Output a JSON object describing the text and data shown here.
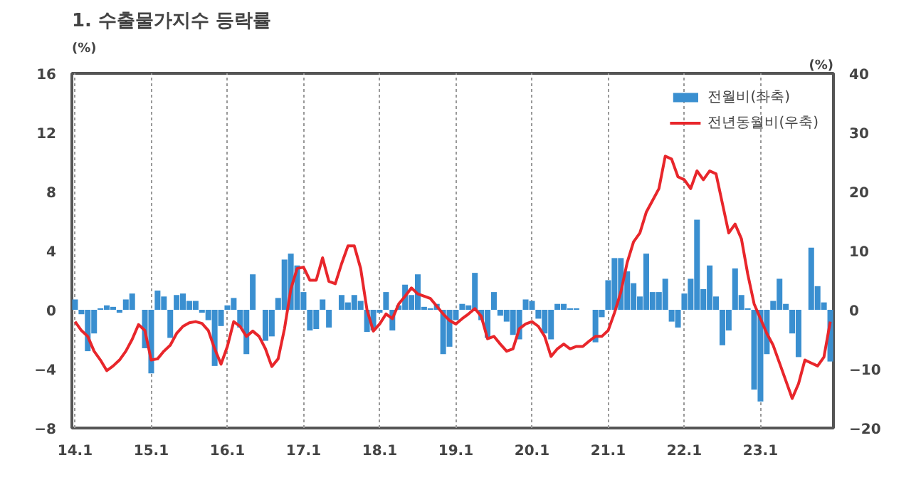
{
  "chart_data": {
    "type": "bar",
    "title": "1. 수출물가지수 등락률",
    "ylabel": "(%)",
    "y2label": "(%)",
    "categories": [
      "14.1",
      null,
      null,
      null,
      null,
      null,
      null,
      null,
      null,
      null,
      null,
      null,
      "15.1",
      null,
      null,
      null,
      null,
      null,
      null,
      null,
      null,
      null,
      null,
      null,
      "16.1",
      null,
      null,
      null,
      null,
      null,
      null,
      null,
      null,
      null,
      null,
      null,
      "17.1",
      null,
      null,
      null,
      null,
      null,
      null,
      null,
      null,
      null,
      null,
      null,
      "18.1",
      null,
      null,
      null,
      null,
      null,
      null,
      null,
      null,
      null,
      null,
      null,
      "19.1",
      null,
      null,
      null,
      null,
      null,
      null,
      null,
      null,
      null,
      null,
      null,
      "20.1",
      null,
      null,
      null,
      null,
      null,
      null,
      null,
      null,
      null,
      null,
      null,
      "21.1",
      null,
      null,
      null,
      null,
      null,
      null,
      null,
      null,
      null,
      null,
      null,
      "22.1",
      null,
      null,
      null,
      null,
      null,
      null,
      null,
      null,
      null,
      null,
      null,
      "23.1",
      null,
      null,
      null,
      null,
      null,
      null,
      null,
      null,
      null,
      null,
      null
    ],
    "series": [
      {
        "name": "전월비(좌축)",
        "color": "#3a8fd0",
        "values": [
          0.7,
          -0.3,
          -2.8,
          -1.6,
          0.1,
          0.3,
          0.2,
          -0.2,
          0.7,
          1.1,
          0,
          -2.6,
          -4.3,
          1.3,
          0.9,
          -1.9,
          1.0,
          1.1,
          0.6,
          0.6,
          -0.2,
          -0.7,
          -3.8,
          -1.1,
          0.3,
          0.8,
          -1.2,
          -3.0,
          2.4,
          0,
          -2.1,
          -1.8,
          0.8,
          3.4,
          3.8,
          3.0,
          1.2,
          -1.4,
          -1.3,
          0.7,
          -1.2,
          0,
          1.0,
          0.5,
          1.0,
          0.6,
          -1.5,
          -1.4,
          -0.2,
          1.2,
          -1.4,
          0.3,
          1.7,
          1.0,
          2.4,
          0.2,
          0.1,
          0.4,
          -3.0,
          -2.5,
          -0.7,
          0.4,
          0.3,
          2.5,
          -0.7,
          -1.9,
          1.2,
          -0.4,
          -0.8,
          -1.7,
          -2.0,
          0.7,
          0.6,
          -0.6,
          -1.6,
          -2.0,
          0.4,
          0.4,
          0.1,
          0.1,
          0,
          0,
          -2.2,
          -0.5,
          2.0,
          3.5,
          3.5,
          2.6,
          1.8,
          0.9,
          3.8,
          1.2,
          1.2,
          2.1,
          -0.8,
          -1.2,
          1.1,
          2.1,
          6.1,
          1.4,
          3.0,
          0.9,
          -2.4,
          -1.4,
          2.8,
          1.0,
          0.1,
          -5.4,
          -6.2,
          -3.0,
          0.6,
          2.1,
          0.4,
          -1.6,
          -3.2,
          0,
          4.2,
          1.6,
          0.5,
          -3.5
        ]
      },
      {
        "name": "전년동월비(우축)",
        "type": "line",
        "axis": "y2",
        "color": "#e8262b",
        "values": [
          -2,
          -3.5,
          -4.5,
          -7,
          -8.5,
          -10.3,
          -9.5,
          -8.5,
          -7,
          -5,
          -2.5,
          -3.5,
          -8.5,
          -8.3,
          -7,
          -6,
          -4,
          -2.8,
          -2.2,
          -2,
          -2.3,
          -3.5,
          -6.6,
          -9.2,
          -6.2,
          -2,
          -2.8,
          -4.5,
          -3.6,
          -4.5,
          -6.6,
          -9.6,
          -8.3,
          -3.2,
          3.5,
          7,
          7.2,
          5,
          5,
          8.8,
          4.8,
          4.4,
          7.8,
          10.8,
          10.8,
          7,
          0,
          -3.6,
          -2.4,
          -0.7,
          -1.5,
          1,
          2.3,
          3.7,
          2.7,
          2.3,
          1.9,
          0.6,
          -0.7,
          -1.8,
          -2.4,
          -1.5,
          -0.7,
          0.2,
          -1.1,
          -4.9,
          -4.5,
          -5.8,
          -7,
          -6.6,
          -3.2,
          -2.4,
          -2,
          -2.8,
          -4.5,
          -7.9,
          -6.6,
          -5.8,
          -6.6,
          -6.2,
          -6.2,
          -5.3,
          -4.5,
          -4.5,
          -3.5,
          -0.5,
          3,
          8,
          11.5,
          13,
          16.5,
          18.5,
          20.5,
          26,
          25.5,
          22.5,
          22,
          20.5,
          23.5,
          22,
          23.5,
          23,
          18,
          13,
          14.5,
          12,
          6,
          1,
          -1.5,
          -4,
          -6,
          -9,
          -12,
          -15,
          -12.5,
          -8.5,
          -9,
          -9.5,
          -8,
          -2
        ]
      }
    ],
    "ylim": [
      -8,
      16
    ],
    "yticks": [
      -8,
      -4,
      0,
      4,
      8,
      12,
      16
    ],
    "y2lim": [
      -20,
      40
    ],
    "y2ticks": [
      -20,
      -10,
      0,
      10,
      20,
      30,
      40
    ],
    "grid": "x",
    "legend": "top right"
  }
}
